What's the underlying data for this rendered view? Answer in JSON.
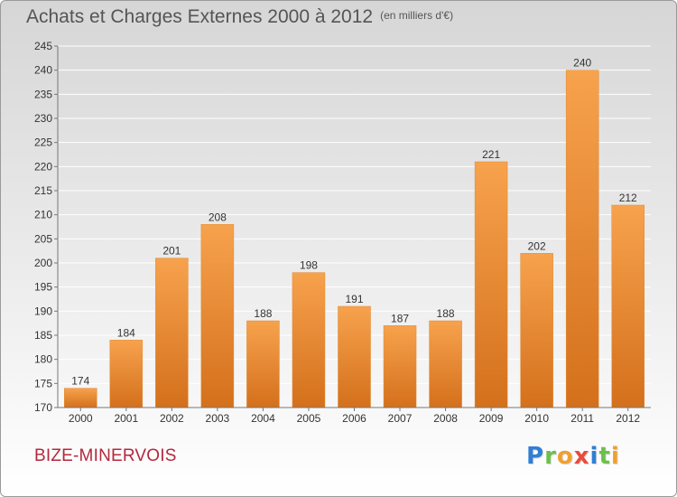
{
  "title": "Achats et Charges Externes 2000 à 2012",
  "subtitle": "(en milliers d'€)",
  "commune": "BIZE-MINERVOIS",
  "logo": {
    "letters": [
      "P",
      "r",
      "o",
      "x",
      "i",
      "t",
      "i"
    ],
    "colors": [
      "#2f7fd4",
      "#6cc04a",
      "#f0a030",
      "#e84c3d",
      "#2f7fd4",
      "#6cc04a",
      "#f0a030"
    ]
  },
  "colors": {
    "bar_top": "#f7a24d",
    "bar_bottom": "#d4701c",
    "title": "#555555",
    "commune": "#b4283c"
  },
  "chart_data": {
    "type": "bar",
    "categories": [
      "2000",
      "2001",
      "2002",
      "2003",
      "2004",
      "2005",
      "2006",
      "2007",
      "2008",
      "2009",
      "2010",
      "2011",
      "2012"
    ],
    "values": [
      174,
      184,
      201,
      208,
      188,
      198,
      191,
      187,
      188,
      221,
      202,
      240,
      212
    ],
    "ylim": [
      170,
      245
    ],
    "yticks": [
      170,
      175,
      180,
      185,
      190,
      195,
      200,
      205,
      210,
      215,
      220,
      225,
      230,
      235,
      240,
      245
    ],
    "grid": true,
    "data_labels": true
  }
}
